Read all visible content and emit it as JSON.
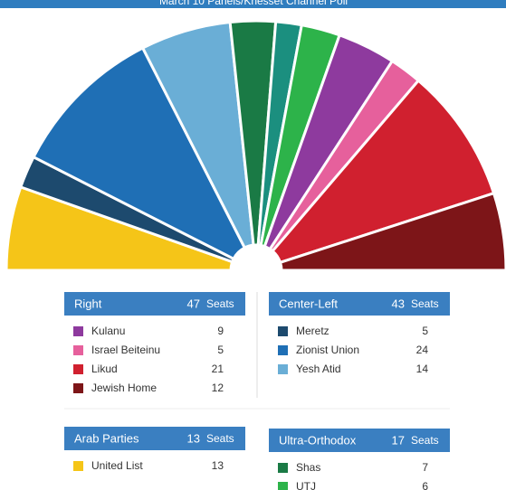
{
  "chart_data": {
    "type": "pie",
    "shape": "semicircle",
    "title": "March 10 Panels/Knesset Channel Poll",
    "categories": [
      "United List",
      "Meretz",
      "Zionist Union",
      "Yesh Atid",
      "Shas",
      null,
      "UTJ",
      "Kulanu",
      "Israel Beiteinu",
      "Likud",
      "Jewish Home"
    ],
    "values": [
      13,
      5,
      24,
      14,
      7,
      4,
      6,
      9,
      5,
      21,
      12
    ],
    "colors": [
      "#f5c518",
      "#1d4a6e",
      "#1f6fb5",
      "#6aaed6",
      "#1a7a45",
      "#1b8f7f",
      "#2db34a",
      "#8e3a9e",
      "#e6609c",
      "#d0202f",
      "#7d1518"
    ]
  },
  "groups": [
    {
      "title": "Right",
      "total": 47,
      "unit": "Seats",
      "items": [
        "Kulanu",
        "Israel Beiteinu",
        "Likud",
        "Jewish Home"
      ]
    },
    {
      "title": "Center-Left",
      "total": 43,
      "unit": "Seats",
      "items": [
        "Meretz",
        "Zionist Union",
        "Yesh Atid"
      ]
    },
    {
      "title": "Arab Parties",
      "total": 13,
      "unit": "Seats",
      "items": [
        "United List"
      ]
    },
    {
      "title": "Ultra-Orthodox",
      "total": 17,
      "unit": "Seats",
      "items": [
        "Shas",
        "UTJ"
      ]
    }
  ]
}
